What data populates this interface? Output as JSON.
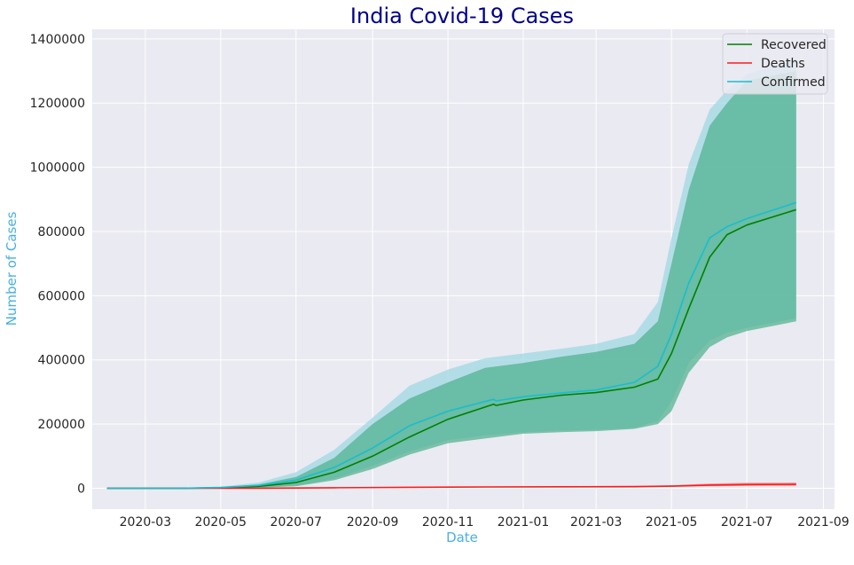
{
  "chart_data": {
    "type": "line",
    "title": "India Covid-19 Cases",
    "xlabel": "Date",
    "ylabel": "Number of Cases",
    "x_ticks": [
      "2020-03",
      "2020-05",
      "2020-07",
      "2020-09",
      "2020-11",
      "2021-01",
      "2021-03",
      "2021-05",
      "2021-07",
      "2021-09"
    ],
    "y_ticks": [
      "0",
      "200000",
      "400000",
      "600000",
      "800000",
      "1000000",
      "1200000",
      "1400000"
    ],
    "xlim": [
      "2020-01-18",
      "2021-09-10"
    ],
    "ylim": [
      -65000,
      1430000
    ],
    "grid": true,
    "background": "#eaeaf2",
    "legend_position": "top-right",
    "series": [
      {
        "name": "Recovered",
        "color": "#008000",
        "band_color": "#4caf8a",
        "points": [
          [
            "2020-01-30",
            0
          ],
          [
            "2020-03-01",
            0
          ],
          [
            "2020-04-01",
            200
          ],
          [
            "2020-05-01",
            1500
          ],
          [
            "2020-06-01",
            6000
          ],
          [
            "2020-07-01",
            18000
          ],
          [
            "2020-08-01",
            50000
          ],
          [
            "2020-09-01",
            100000
          ],
          [
            "2020-10-01",
            160000
          ],
          [
            "2020-11-01",
            215000
          ],
          [
            "2020-12-08",
            262000
          ],
          [
            "2020-12-10",
            258000
          ],
          [
            "2021-01-01",
            275000
          ],
          [
            "2021-02-01",
            290000
          ],
          [
            "2021-03-01",
            298000
          ],
          [
            "2021-04-01",
            315000
          ],
          [
            "2021-04-20",
            340000
          ],
          [
            "2021-05-01",
            420000
          ],
          [
            "2021-05-15",
            560000
          ],
          [
            "2021-06-01",
            720000
          ],
          [
            "2021-06-15",
            790000
          ],
          [
            "2021-07-01",
            820000
          ],
          [
            "2021-08-10",
            868000
          ]
        ],
        "band_upper": [
          [
            "2020-01-30",
            0
          ],
          [
            "2020-04-01",
            500
          ],
          [
            "2020-05-01",
            3000
          ],
          [
            "2020-06-01",
            12000
          ],
          [
            "2020-07-01",
            35000
          ],
          [
            "2020-08-01",
            95000
          ],
          [
            "2020-09-01",
            200000
          ],
          [
            "2020-10-01",
            280000
          ],
          [
            "2020-11-01",
            330000
          ],
          [
            "2020-12-01",
            375000
          ],
          [
            "2021-01-01",
            390000
          ],
          [
            "2021-02-01",
            410000
          ],
          [
            "2021-03-01",
            425000
          ],
          [
            "2021-04-01",
            450000
          ],
          [
            "2021-04-20",
            520000
          ],
          [
            "2021-05-01",
            700000
          ],
          [
            "2021-05-15",
            930000
          ],
          [
            "2021-06-01",
            1130000
          ],
          [
            "2021-06-15",
            1200000
          ],
          [
            "2021-07-01",
            1270000
          ],
          [
            "2021-08-10",
            1300000
          ]
        ],
        "band_lower": [
          [
            "2020-01-30",
            0
          ],
          [
            "2020-04-01",
            0
          ],
          [
            "2020-05-01",
            500
          ],
          [
            "2020-06-01",
            2000
          ],
          [
            "2020-07-01",
            6000
          ],
          [
            "2020-08-01",
            25000
          ],
          [
            "2020-09-01",
            60000
          ],
          [
            "2020-10-01",
            105000
          ],
          [
            "2020-11-01",
            140000
          ],
          [
            "2020-12-01",
            155000
          ],
          [
            "2021-01-01",
            170000
          ],
          [
            "2021-02-01",
            175000
          ],
          [
            "2021-03-01",
            178000
          ],
          [
            "2021-04-01",
            185000
          ],
          [
            "2021-04-20",
            200000
          ],
          [
            "2021-05-01",
            240000
          ],
          [
            "2021-05-15",
            360000
          ],
          [
            "2021-06-01",
            440000
          ],
          [
            "2021-06-15",
            470000
          ],
          [
            "2021-07-01",
            490000
          ],
          [
            "2021-08-10",
            520000
          ]
        ]
      },
      {
        "name": "Deaths",
        "color": "#ff1a1a",
        "band_color": "#f08080",
        "points": [
          [
            "2020-01-30",
            0
          ],
          [
            "2020-04-01",
            0
          ],
          [
            "2020-06-01",
            200
          ],
          [
            "2020-08-01",
            1500
          ],
          [
            "2020-10-01",
            3000
          ],
          [
            "2020-12-01",
            4000
          ],
          [
            "2021-02-01",
            4500
          ],
          [
            "2021-04-01",
            5000
          ],
          [
            "2021-05-01",
            6500
          ],
          [
            "2021-06-01",
            10000
          ],
          [
            "2021-07-01",
            11500
          ],
          [
            "2021-08-10",
            12000
          ]
        ],
        "band_upper": [
          [
            "2020-01-30",
            0
          ],
          [
            "2020-06-01",
            500
          ],
          [
            "2020-10-01",
            4500
          ],
          [
            "2021-02-01",
            6000
          ],
          [
            "2021-05-01",
            9000
          ],
          [
            "2021-06-01",
            15000
          ],
          [
            "2021-07-01",
            17000
          ],
          [
            "2021-08-10",
            18000
          ]
        ],
        "band_lower": [
          [
            "2020-01-30",
            0
          ],
          [
            "2020-06-01",
            0
          ],
          [
            "2020-10-01",
            2000
          ],
          [
            "2021-02-01",
            3000
          ],
          [
            "2021-05-01",
            4500
          ],
          [
            "2021-06-01",
            6000
          ],
          [
            "2021-07-01",
            7000
          ],
          [
            "2021-08-10",
            7500
          ]
        ]
      },
      {
        "name": "Confirmed",
        "color": "#17becf",
        "band_color": "#9fd8e3",
        "points": [
          [
            "2020-01-30",
            0
          ],
          [
            "2020-03-01",
            0
          ],
          [
            "2020-04-01",
            300
          ],
          [
            "2020-05-01",
            2500
          ],
          [
            "2020-06-01",
            9000
          ],
          [
            "2020-07-01",
            25000
          ],
          [
            "2020-08-01",
            65000
          ],
          [
            "2020-09-01",
            125000
          ],
          [
            "2020-10-01",
            195000
          ],
          [
            "2020-11-01",
            240000
          ],
          [
            "2020-12-08",
            277000
          ],
          [
            "2020-12-10",
            272000
          ],
          [
            "2021-01-01",
            285000
          ],
          [
            "2021-02-01",
            297000
          ],
          [
            "2021-03-01",
            306000
          ],
          [
            "2021-04-01",
            330000
          ],
          [
            "2021-04-20",
            380000
          ],
          [
            "2021-05-01",
            480000
          ],
          [
            "2021-05-15",
            640000
          ],
          [
            "2021-06-01",
            780000
          ],
          [
            "2021-06-15",
            815000
          ],
          [
            "2021-07-01",
            840000
          ],
          [
            "2021-08-10",
            890000
          ]
        ],
        "band_upper": [
          [
            "2020-01-30",
            0
          ],
          [
            "2020-04-01",
            800
          ],
          [
            "2020-05-01",
            5000
          ],
          [
            "2020-06-01",
            18000
          ],
          [
            "2020-07-01",
            50000
          ],
          [
            "2020-08-01",
            120000
          ],
          [
            "2020-09-01",
            220000
          ],
          [
            "2020-10-01",
            320000
          ],
          [
            "2020-11-01",
            370000
          ],
          [
            "2020-12-01",
            405000
          ],
          [
            "2021-01-01",
            420000
          ],
          [
            "2021-02-01",
            435000
          ],
          [
            "2021-03-01",
            450000
          ],
          [
            "2021-04-01",
            480000
          ],
          [
            "2021-04-20",
            580000
          ],
          [
            "2021-05-01",
            780000
          ],
          [
            "2021-05-15",
            1010000
          ],
          [
            "2021-06-01",
            1180000
          ],
          [
            "2021-06-15",
            1240000
          ],
          [
            "2021-07-01",
            1290000
          ],
          [
            "2021-08-10",
            1340000
          ]
        ],
        "band_lower": [
          [
            "2020-01-30",
            0
          ],
          [
            "2020-04-01",
            0
          ],
          [
            "2020-05-01",
            700
          ],
          [
            "2020-06-01",
            2500
          ],
          [
            "2020-07-01",
            8000
          ],
          [
            "2020-08-01",
            30000
          ],
          [
            "2020-09-01",
            70000
          ],
          [
            "2020-10-01",
            115000
          ],
          [
            "2020-11-01",
            150000
          ],
          [
            "2020-12-01",
            165000
          ],
          [
            "2021-01-01",
            175000
          ],
          [
            "2021-02-01",
            180000
          ],
          [
            "2021-03-01",
            182000
          ],
          [
            "2021-04-01",
            188000
          ],
          [
            "2021-04-20",
            210000
          ],
          [
            "2021-05-01",
            270000
          ],
          [
            "2021-05-15",
            390000
          ],
          [
            "2021-06-01",
            460000
          ],
          [
            "2021-06-15",
            485000
          ],
          [
            "2021-07-01",
            500000
          ],
          [
            "2021-08-10",
            530000
          ]
        ]
      }
    ]
  }
}
